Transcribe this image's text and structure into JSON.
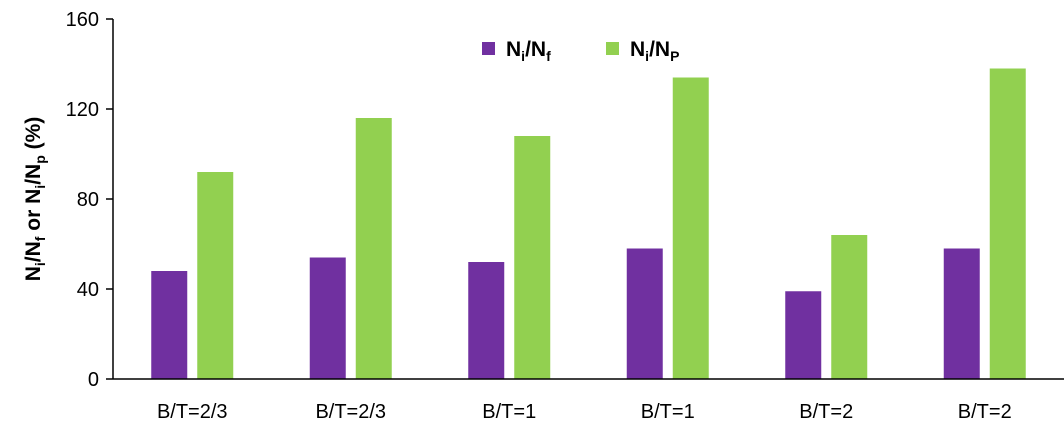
{
  "chart_data": {
    "type": "bar",
    "categories": [
      "B/T=2/3",
      "B/T=2/3",
      "B/T=1",
      "B/T=1",
      "B/T=2",
      "B/T=2"
    ],
    "series": [
      {
        "name": "Ni/Nf",
        "name_main": "N",
        "name_sub1": "i",
        "name_mid": "/N",
        "name_sub2": "f",
        "color": "#7030a0",
        "values": [
          48,
          54,
          52,
          58,
          39,
          58
        ]
      },
      {
        "name": "Ni/NP",
        "name_main": "N",
        "name_sub1": "i",
        "name_mid": "/N",
        "name_sub2": "P",
        "color": "#92d050",
        "values": [
          92,
          116,
          108,
          134,
          64,
          138
        ]
      }
    ],
    "ylabel": "Ni/Nf or Ni/Np (%)",
    "ylabel_parts": [
      "N",
      "i",
      "/N",
      "f",
      " or N",
      "i",
      "/N",
      "p",
      " (%)"
    ],
    "ylim": [
      0,
      160
    ],
    "yticks": [
      "0",
      "40",
      "80",
      "120",
      "160"
    ],
    "grid": false,
    "legend_position": "top-center"
  }
}
